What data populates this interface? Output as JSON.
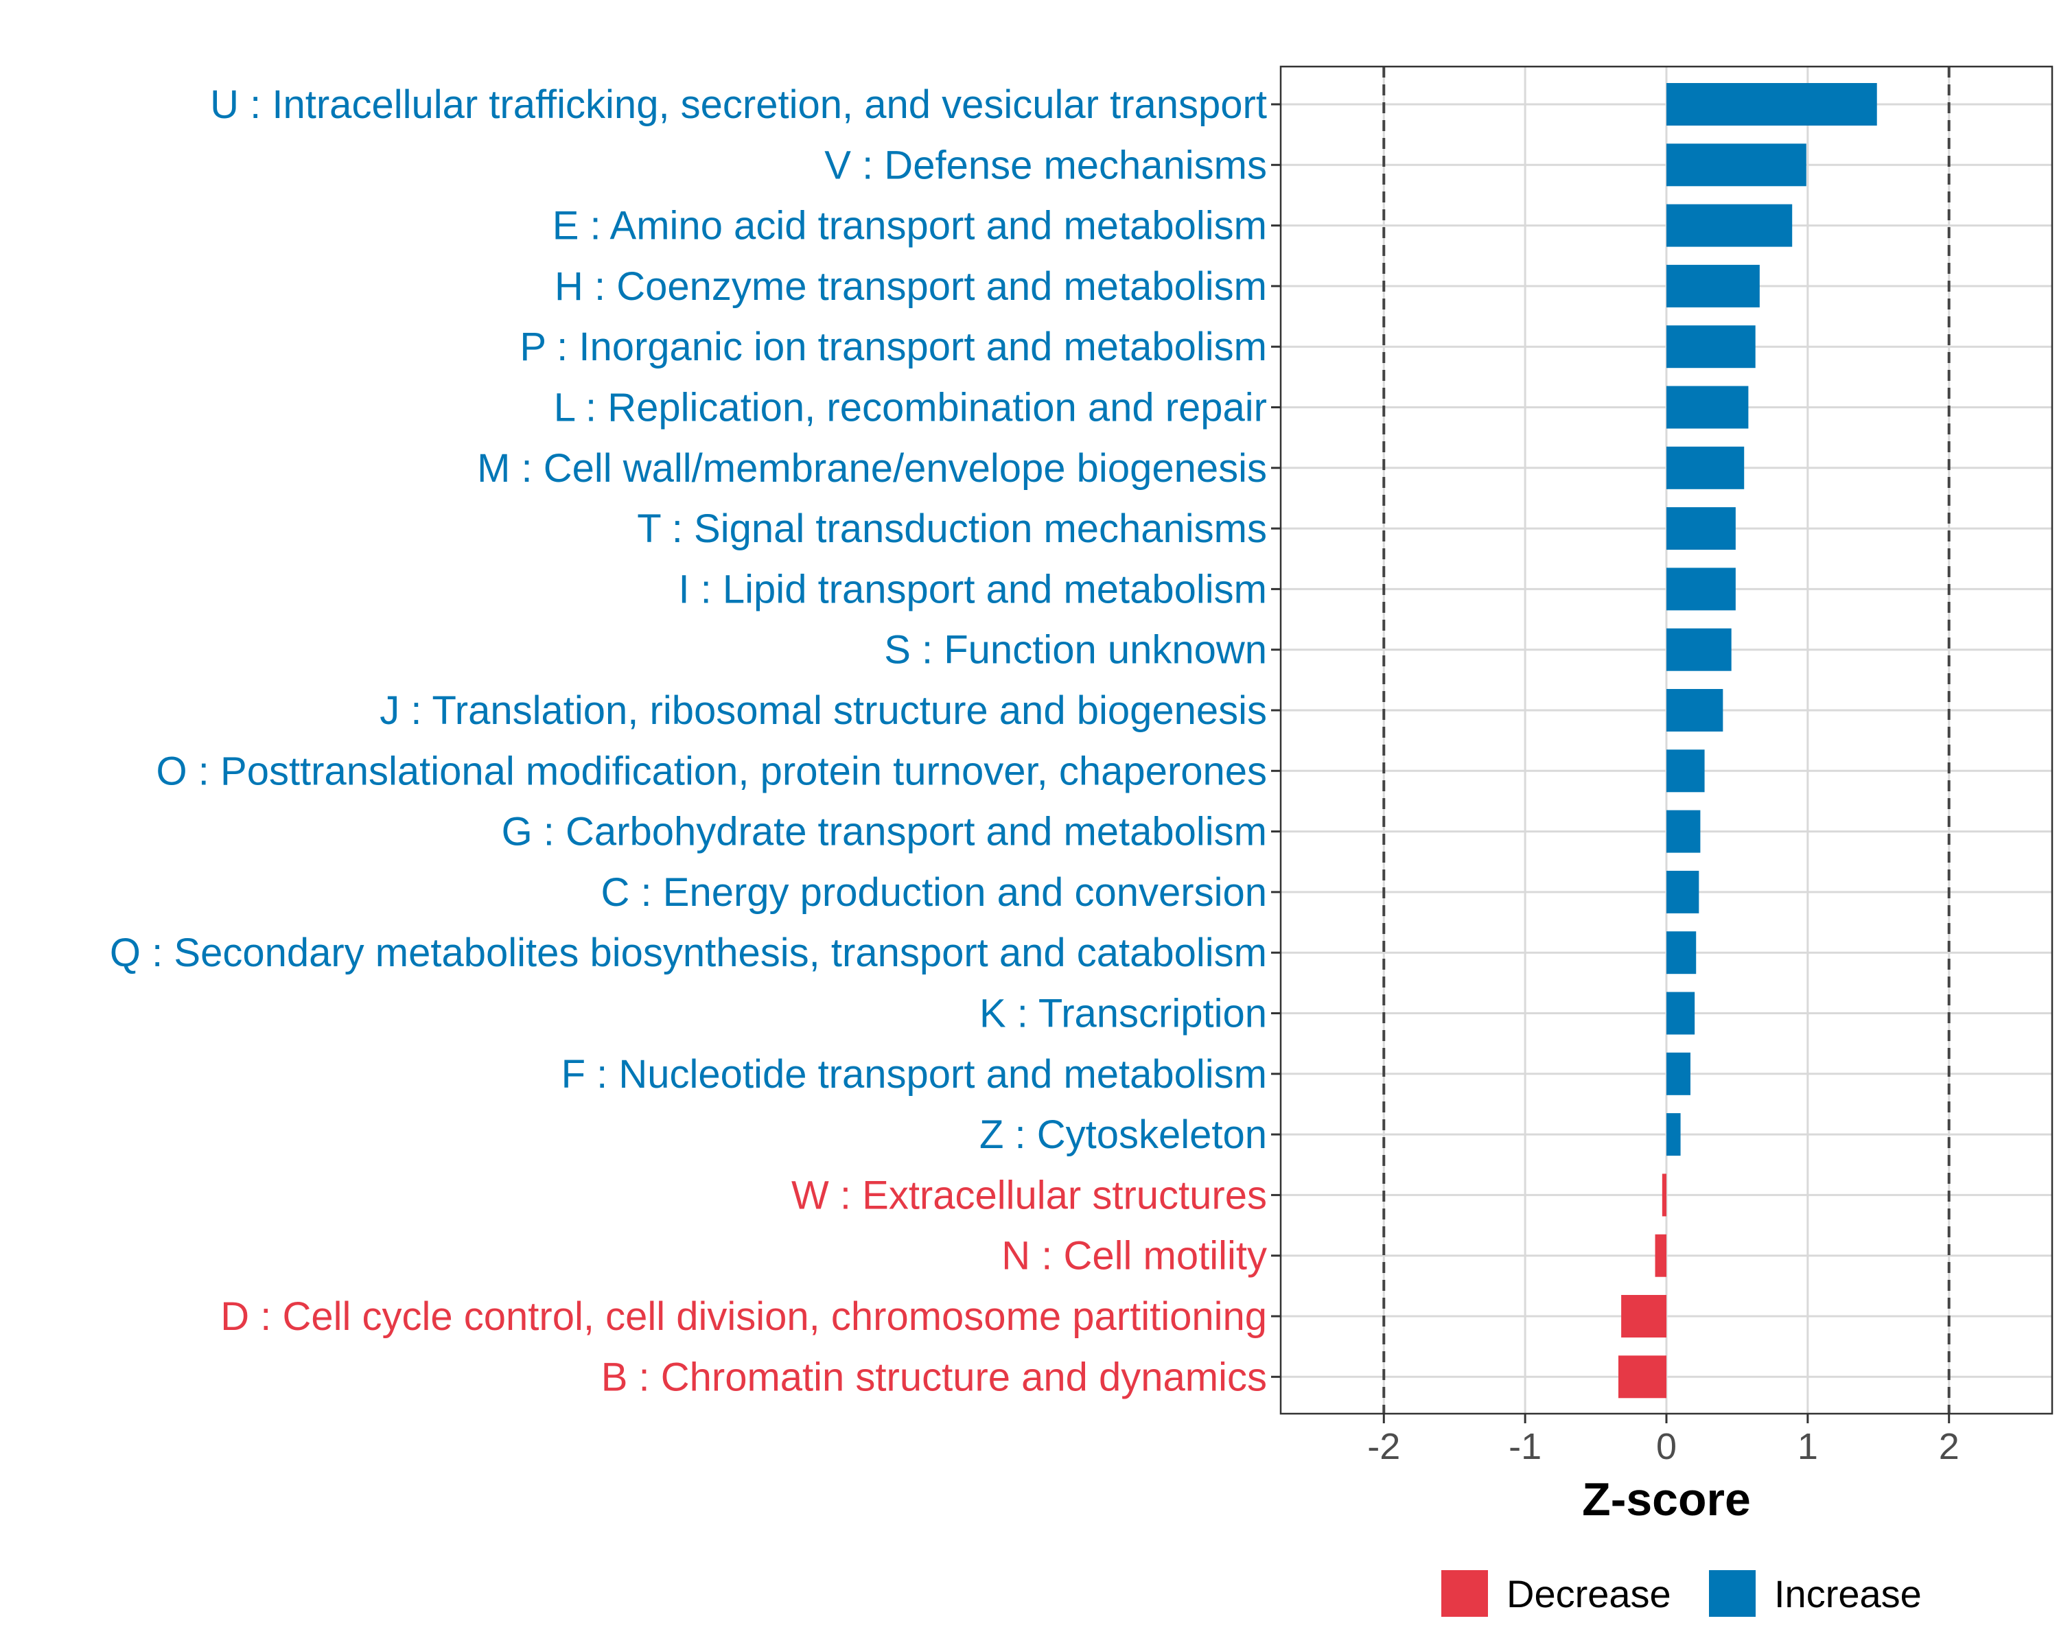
{
  "chart_data": {
    "type": "bar",
    "orientation": "horizontal",
    "xlabel": "Z-score",
    "ylabel": "",
    "xlim": [
      -2.73,
      2.73
    ],
    "xticks": [
      -2,
      -1,
      0,
      1,
      2
    ],
    "xtick_labels": [
      "-2",
      "-1",
      "0",
      "1",
      "2"
    ],
    "reference_lines": [
      -2,
      2
    ],
    "grid": true,
    "legend_position": "bottom",
    "colors": {
      "Decrease": "#E63946",
      "Increase": "#0077B6"
    },
    "legend": [
      {
        "key": "Decrease",
        "label": "Decrease"
      },
      {
        "key": "Increase",
        "label": "Increase"
      }
    ],
    "categories": [
      "U : Intracellular trafficking, secretion, and vesicular transport",
      "V : Defense mechanisms",
      "E : Amino acid transport and metabolism",
      "H : Coenzyme transport and metabolism",
      "P : Inorganic ion transport and metabolism",
      "L : Replication, recombination and repair",
      "M : Cell wall/membrane/envelope biogenesis",
      "T : Signal transduction mechanisms",
      "I : Lipid transport and metabolism",
      "S : Function unknown",
      "J : Translation, ribosomal structure and biogenesis",
      "O : Posttranslational modification, protein turnover, chaperones",
      "G : Carbohydrate transport and metabolism",
      "C : Energy production and conversion",
      "Q : Secondary metabolites biosynthesis, transport and catabolism",
      "K : Transcription",
      "F : Nucleotide transport and metabolism",
      "Z : Cytoskeleton",
      "W : Extracellular structures",
      "N : Cell motility",
      "D : Cell cycle control, cell division, chromosome partitioning",
      "B : Chromatin structure and dynamics"
    ],
    "values": [
      1.49,
      0.99,
      0.89,
      0.66,
      0.63,
      0.58,
      0.55,
      0.49,
      0.49,
      0.46,
      0.4,
      0.27,
      0.24,
      0.23,
      0.21,
      0.2,
      0.17,
      0.1,
      -0.03,
      -0.08,
      -0.32,
      -0.34
    ],
    "groups": [
      "Increase",
      "Increase",
      "Increase",
      "Increase",
      "Increase",
      "Increase",
      "Increase",
      "Increase",
      "Increase",
      "Increase",
      "Increase",
      "Increase",
      "Increase",
      "Increase",
      "Increase",
      "Increase",
      "Increase",
      "Increase",
      "Decrease",
      "Decrease",
      "Decrease",
      "Decrease"
    ]
  }
}
